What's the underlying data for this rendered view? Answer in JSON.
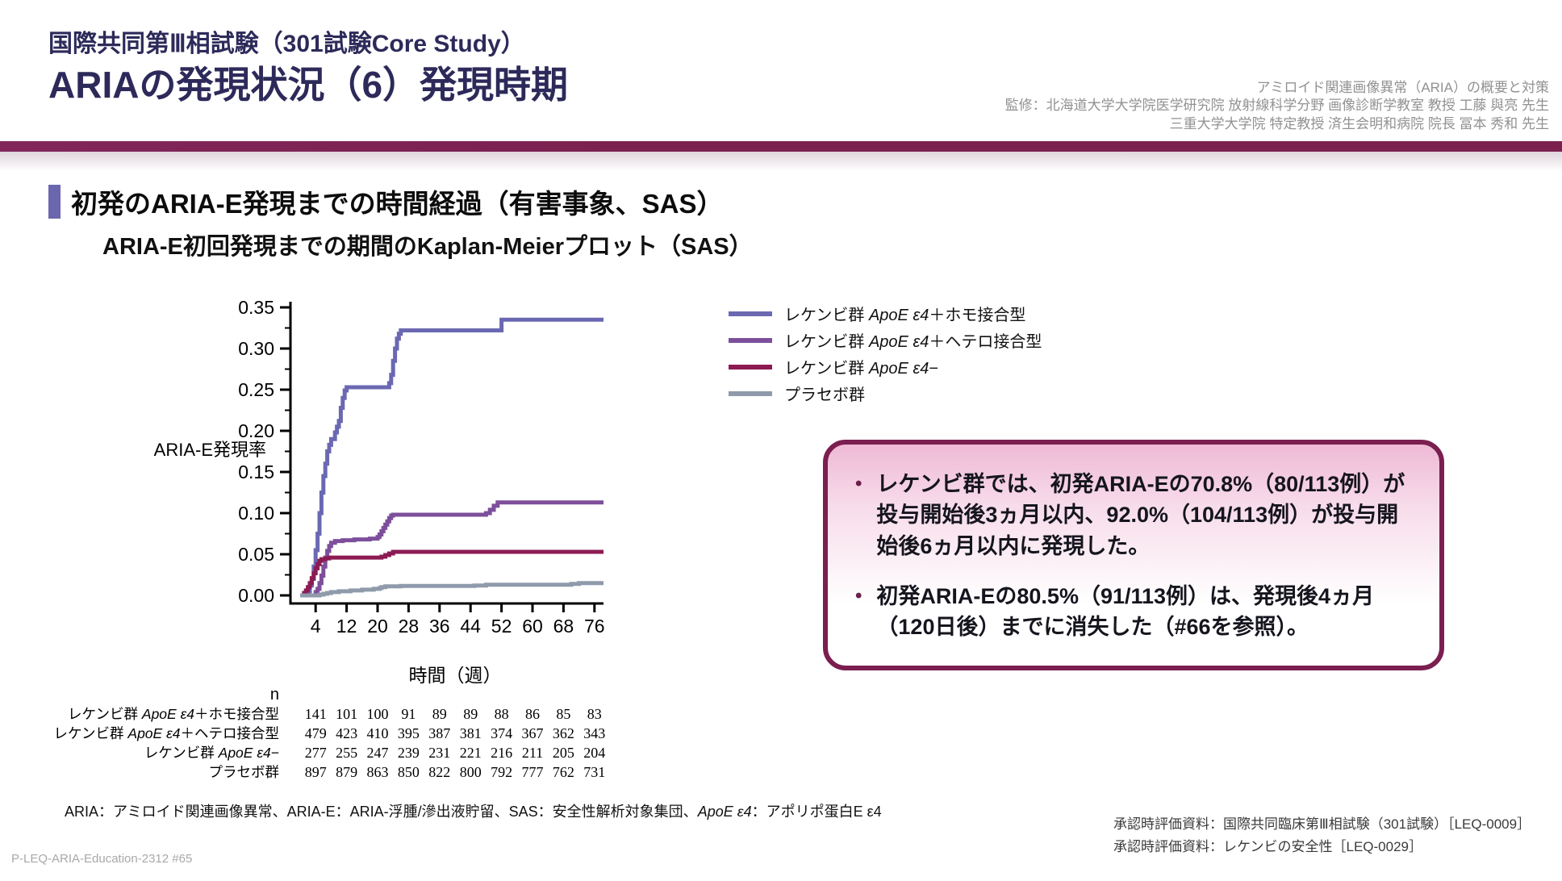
{
  "header": {
    "title_line1": "国際共同第Ⅲ相試験（301試験Core Study）",
    "title_line2": "ARIAの発現状況（6）発現時期",
    "credits": [
      "アミロイド関連画像異常（ARIA）の概要と対策",
      "監修：北海道大学大学院医学研究院 放射線科学分野 画像診断学教室 教授 工藤 與亮 先生",
      "三重大学大学院 特定教授 済生会明和病院 院長 冨本 秀和 先生"
    ],
    "divider_color": "#7b2150"
  },
  "section": {
    "heading": "初発のARIA-E発現までの時間経過（有害事象、SAS）",
    "accent_color": "#6a67ae",
    "subtitle": "ARIA-E初回発現までの期間のKaplan-Meierプロット（SAS）"
  },
  "chart_data": {
    "type": "line",
    "subtype": "kaplan-meier-step",
    "title": "ARIA-E初回発現までの期間のKaplan-Meierプロット（SAS）",
    "xlabel": "時間（週）",
    "ylabel": "ARIA-E発現率",
    "xlim": [
      0,
      78
    ],
    "ylim": [
      0,
      0.35
    ],
    "x_ticks": [
      4,
      12,
      20,
      28,
      36,
      44,
      52,
      60,
      68,
      76
    ],
    "y_tick_labels": [
      "0.00",
      "0.05",
      "0.10",
      "0.15",
      "0.20",
      "0.25",
      "0.30",
      "0.35"
    ],
    "grid": false,
    "legend_position": "right-of-plot-top",
    "series": [
      {
        "name": "レケンビ群 ApoE ε4＋ホモ接合型",
        "label_parts": {
          "pre": "レケンビ群 ",
          "italic": "ApoE ε4",
          "post": "＋ホモ接合型"
        },
        "color": "#6b68b2",
        "points": [
          [
            0,
            0
          ],
          [
            2,
            0.005
          ],
          [
            2.5,
            0.012
          ],
          [
            3,
            0.02
          ],
          [
            3.5,
            0.035
          ],
          [
            4,
            0.055
          ],
          [
            4.5,
            0.075
          ],
          [
            5,
            0.1
          ],
          [
            5.5,
            0.125
          ],
          [
            6,
            0.145
          ],
          [
            6.5,
            0.16
          ],
          [
            7,
            0.175
          ],
          [
            7.5,
            0.183
          ],
          [
            8,
            0.19
          ],
          [
            9,
            0.198
          ],
          [
            9.5,
            0.205
          ],
          [
            10,
            0.212
          ],
          [
            10.5,
            0.228
          ],
          [
            11,
            0.24
          ],
          [
            11.5,
            0.249
          ],
          [
            12,
            0.253
          ],
          [
            23,
            0.258
          ],
          [
            23.5,
            0.268
          ],
          [
            24,
            0.285
          ],
          [
            24.5,
            0.3
          ],
          [
            25,
            0.312
          ],
          [
            25.5,
            0.318
          ],
          [
            26,
            0.322
          ],
          [
            52,
            0.335
          ],
          [
            78,
            0.335
          ]
        ]
      },
      {
        "name": "レケンビ群 ApoE ε4＋ヘテロ接合型",
        "label_parts": {
          "pre": "レケンビ群 ",
          "italic": "ApoE ε4",
          "post": "＋ヘテロ接合型"
        },
        "color": "#7d4f9b",
        "points": [
          [
            0,
            0
          ],
          [
            4,
            0.004
          ],
          [
            4.5,
            0.008
          ],
          [
            5,
            0.015
          ],
          [
            5.5,
            0.024
          ],
          [
            6,
            0.035
          ],
          [
            6.5,
            0.046
          ],
          [
            7,
            0.054
          ],
          [
            7.5,
            0.06
          ],
          [
            8,
            0.064
          ],
          [
            9,
            0.066
          ],
          [
            11,
            0.067
          ],
          [
            14,
            0.068
          ],
          [
            18,
            0.069
          ],
          [
            20,
            0.071
          ],
          [
            20.5,
            0.074
          ],
          [
            21,
            0.078
          ],
          [
            21.5,
            0.082
          ],
          [
            22,
            0.086
          ],
          [
            22.5,
            0.09
          ],
          [
            23,
            0.094
          ],
          [
            23.5,
            0.097
          ],
          [
            24,
            0.098
          ],
          [
            48,
            0.1
          ],
          [
            49,
            0.104
          ],
          [
            50,
            0.109
          ],
          [
            51,
            0.113
          ],
          [
            78,
            0.113
          ]
        ]
      },
      {
        "name": "レケンビ群 ApoE ε4−",
        "label_parts": {
          "pre": "レケンビ群 ",
          "italic": "ApoE ε4",
          "post": "−"
        },
        "color": "#8c1b53",
        "points": [
          [
            0,
            0
          ],
          [
            1,
            0.003
          ],
          [
            1.5,
            0.006
          ],
          [
            2,
            0.01
          ],
          [
            2.5,
            0.015
          ],
          [
            3,
            0.021
          ],
          [
            3.5,
            0.027
          ],
          [
            4,
            0.033
          ],
          [
            4.5,
            0.038
          ],
          [
            5,
            0.042
          ],
          [
            5.5,
            0.044
          ],
          [
            6.5,
            0.045
          ],
          [
            7.5,
            0.046
          ],
          [
            21,
            0.047
          ],
          [
            22,
            0.049
          ],
          [
            23,
            0.051
          ],
          [
            24,
            0.053
          ],
          [
            78,
            0.053
          ]
        ]
      },
      {
        "name": "プラセボ群",
        "label_parts": {
          "pre": "プラセボ群",
          "italic": "",
          "post": ""
        },
        "color": "#8f9aab",
        "points": [
          [
            0,
            0
          ],
          [
            5,
            0.001
          ],
          [
            6,
            0.002
          ],
          [
            7,
            0.003
          ],
          [
            8,
            0.004
          ],
          [
            10,
            0.005
          ],
          [
            13,
            0.006
          ],
          [
            16,
            0.007
          ],
          [
            19,
            0.008
          ],
          [
            20.5,
            0.009
          ],
          [
            21,
            0.01
          ],
          [
            22,
            0.011
          ],
          [
            26,
            0.0115
          ],
          [
            45,
            0.012
          ],
          [
            48,
            0.013
          ],
          [
            70,
            0.014
          ],
          [
            72,
            0.015
          ],
          [
            78,
            0.015
          ]
        ]
      }
    ],
    "at_risk": {
      "header": "n",
      "weeks": [
        4,
        12,
        20,
        28,
        36,
        44,
        52,
        60,
        68,
        76
      ],
      "rows": [
        {
          "label_parts": {
            "pre": "レケンビ群 ",
            "italic": "ApoE ε4",
            "post": "＋ホモ接合型"
          },
          "values": [
            141,
            101,
            100,
            91,
            89,
            89,
            88,
            86,
            85,
            83
          ]
        },
        {
          "label_parts": {
            "pre": "レケンビ群 ",
            "italic": "ApoE ε4",
            "post": "＋ヘテロ接合型"
          },
          "values": [
            479,
            423,
            410,
            395,
            387,
            381,
            374,
            367,
            362,
            343
          ]
        },
        {
          "label_parts": {
            "pre": "レケンビ群 ",
            "italic": "ApoE ε4",
            "post": "−"
          },
          "values": [
            277,
            255,
            247,
            239,
            231,
            221,
            216,
            211,
            205,
            204
          ]
        },
        {
          "label_parts": {
            "pre": "プラセボ群",
            "italic": "",
            "post": ""
          },
          "values": [
            897,
            879,
            863,
            850,
            822,
            800,
            792,
            777,
            762,
            731
          ]
        }
      ]
    }
  },
  "callout": {
    "border_color": "#7b1e50",
    "bullets": [
      "レケンビ群では、初発ARIA-Eの70.8%（80/113例）が投与開始後3ヵ月以内、92.0%（104/113例）が投与開始後6ヵ月以内に発現した。",
      "初発ARIA-Eの80.5%（91/113例）は、発現後4ヵ月（120日後）までに消失した（#66を参照）。"
    ]
  },
  "footnote": {
    "parts": [
      {
        "text": "ARIA：アミロイド関連画像異常、ARIA-E：ARIA-浮腫/滲出液貯留、SAS：安全性解析対象集団、",
        "italic": false
      },
      {
        "text": "ApoE ε4",
        "italic": true
      },
      {
        "text": "：アポリポ蛋白E ε4",
        "italic": false
      }
    ]
  },
  "footer": {
    "slide_code": "P-LEQ-ARIA-Education-2312 #65",
    "references": [
      "承認時評価資料：国際共同臨床第Ⅲ相試験（301試験）［LEQ-0009］",
      "承認時評価資料：レケンビの安全性［LEQ-0029］"
    ]
  }
}
